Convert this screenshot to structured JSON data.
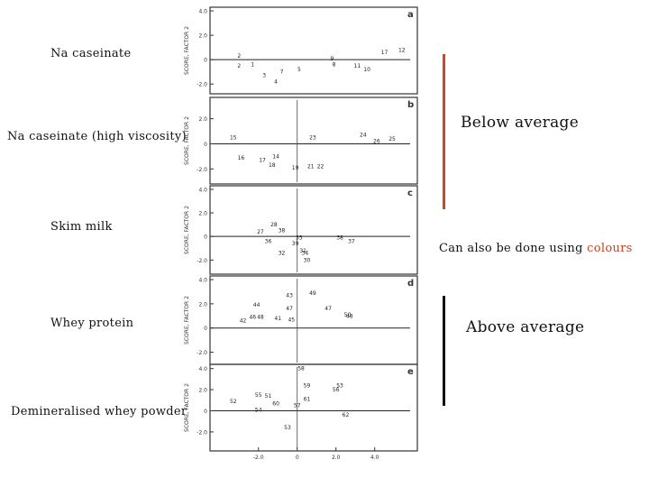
{
  "slide": {
    "plot_labels": [
      "Na caseinate",
      "Na caseinate (high viscosity)",
      "Skim milk",
      "Whey protein",
      "Demineralised whey powder"
    ],
    "below_label": "Below average",
    "above_label": "Above average",
    "colours_note_prefix": "Can also be done using ",
    "colours_note_word": "colours",
    "colors": {
      "below_bar": "#d1451f",
      "above_bar": "#111111",
      "colours_word": "#c5401f"
    }
  },
  "chart_data": [
    {
      "type": "scatter",
      "panel": "a",
      "ylabel": "SCORE, FACTOR 2",
      "yticks": [
        "4.0",
        "2.0",
        "0",
        "-2.0"
      ],
      "ylim": [
        -2.8,
        4.3
      ],
      "xlim": [
        -4.5,
        6.2
      ],
      "vertical_line": false,
      "points": [
        {
          "label": "2",
          "x": -3.0,
          "y": 0.3
        },
        {
          "label": "2",
          "x": -3.0,
          "y": -0.5
        },
        {
          "label": "1",
          "x": -2.3,
          "y": -0.4
        },
        {
          "label": "3",
          "x": -1.7,
          "y": -1.3
        },
        {
          "label": "4",
          "x": -1.1,
          "y": -1.8
        },
        {
          "label": "7",
          "x": -0.8,
          "y": -1.0
        },
        {
          "label": "5",
          "x": 0.1,
          "y": -0.8
        },
        {
          "label": "9",
          "x": 1.8,
          "y": 0.1
        },
        {
          "label": "8",
          "x": 1.9,
          "y": -0.4
        },
        {
          "label": "11",
          "x": 3.1,
          "y": -0.5
        },
        {
          "label": "10",
          "x": 3.6,
          "y": -0.8
        },
        {
          "label": "17",
          "x": 4.5,
          "y": 0.6
        },
        {
          "label": "12",
          "x": 5.4,
          "y": 0.8
        }
      ]
    },
    {
      "type": "scatter",
      "panel": "b",
      "ylabel": "SCORE, FACTOR 2",
      "yticks": [
        "2.0",
        "0",
        "-2.0"
      ],
      "ylim": [
        -3.2,
        3.7
      ],
      "xlim": [
        -4.5,
        6.2
      ],
      "vertical_line": true,
      "points": [
        {
          "label": "15",
          "x": -3.3,
          "y": 0.5
        },
        {
          "label": "16",
          "x": -2.9,
          "y": -1.1
        },
        {
          "label": "17",
          "x": -1.8,
          "y": -1.3
        },
        {
          "label": "18",
          "x": -1.3,
          "y": -1.7
        },
        {
          "label": "14",
          "x": -1.1,
          "y": -1.0
        },
        {
          "label": "19",
          "x": -0.1,
          "y": -1.9
        },
        {
          "label": "21",
          "x": 0.7,
          "y": -1.8
        },
        {
          "label": "22",
          "x": 1.2,
          "y": -1.8
        },
        {
          "label": "23",
          "x": 0.8,
          "y": 0.5
        },
        {
          "label": "24",
          "x": 3.4,
          "y": 0.7
        },
        {
          "label": "26",
          "x": 4.1,
          "y": 0.2
        },
        {
          "label": "25",
          "x": 4.9,
          "y": 0.4
        }
      ]
    },
    {
      "type": "scatter",
      "panel": "c",
      "ylabel": "SCORE, FACTOR 2",
      "yticks": [
        "4.0",
        "2.0",
        "0",
        "-2.0"
      ],
      "ylim": [
        -3.2,
        4.3
      ],
      "xlim": [
        -4.5,
        6.2
      ],
      "vertical_line": true,
      "points": [
        {
          "label": "28",
          "x": -1.2,
          "y": 1.0
        },
        {
          "label": "27",
          "x": -1.9,
          "y": 0.4
        },
        {
          "label": "38",
          "x": -0.8,
          "y": 0.5
        },
        {
          "label": "36",
          "x": -1.5,
          "y": -0.4
        },
        {
          "label": "35",
          "x": 0.1,
          "y": -0.1
        },
        {
          "label": "32",
          "x": -0.8,
          "y": -1.4
        },
        {
          "label": "31",
          "x": 0.3,
          "y": -1.2
        },
        {
          "label": "34",
          "x": 0.4,
          "y": -1.4
        },
        {
          "label": "30",
          "x": 0.5,
          "y": -2.0
        },
        {
          "label": "39",
          "x": -0.1,
          "y": -0.6
        },
        {
          "label": "38",
          "x": 2.2,
          "y": -0.1
        },
        {
          "label": "37",
          "x": 2.8,
          "y": -0.4
        }
      ]
    },
    {
      "type": "scatter",
      "panel": "d",
      "ylabel": "SCORE, FACTOR 2",
      "yticks": [
        "4.0",
        "2.0",
        "0",
        "-2.0"
      ],
      "ylim": [
        -3.0,
        4.3
      ],
      "xlim": [
        -4.5,
        6.2
      ],
      "vertical_line": true,
      "points": [
        {
          "label": "43",
          "x": -0.4,
          "y": 2.7
        },
        {
          "label": "49",
          "x": 0.8,
          "y": 2.9
        },
        {
          "label": "44",
          "x": -2.1,
          "y": 1.9
        },
        {
          "label": "47",
          "x": -0.4,
          "y": 1.6
        },
        {
          "label": "47",
          "x": 1.6,
          "y": 1.6
        },
        {
          "label": "42",
          "x": -2.8,
          "y": 0.6
        },
        {
          "label": "46",
          "x": -2.3,
          "y": 0.9
        },
        {
          "label": "48",
          "x": -1.9,
          "y": 0.9
        },
        {
          "label": "41",
          "x": -1.0,
          "y": 0.8
        },
        {
          "label": "45",
          "x": -0.3,
          "y": 0.7
        },
        {
          "label": "50",
          "x": 2.6,
          "y": 1.1
        },
        {
          "label": "48",
          "x": 2.7,
          "y": 1.0
        }
      ]
    },
    {
      "type": "scatter",
      "panel": "e",
      "ylabel": "SCORE, FACTOR 2",
      "yticks": [
        "4.0",
        "2.0",
        "0",
        "-2.0"
      ],
      "ylim": [
        -3.8,
        4.4
      ],
      "xlim": [
        -4.5,
        6.2
      ],
      "xticks": [
        "-2.0",
        "0",
        "2.0",
        "4.0"
      ],
      "xlabel": "",
      "vertical_line": true,
      "points": [
        {
          "label": "58",
          "x": 0.2,
          "y": 4.0
        },
        {
          "label": "59",
          "x": 0.5,
          "y": 2.4
        },
        {
          "label": "53",
          "x": 2.2,
          "y": 2.4
        },
        {
          "label": "56",
          "x": 2.0,
          "y": 2.0
        },
        {
          "label": "55",
          "x": -2.0,
          "y": 1.5
        },
        {
          "label": "51",
          "x": -1.5,
          "y": 1.4
        },
        {
          "label": "61",
          "x": 0.5,
          "y": 1.1
        },
        {
          "label": "52",
          "x": -3.3,
          "y": 0.9
        },
        {
          "label": "60",
          "x": -1.1,
          "y": 0.7
        },
        {
          "label": "57",
          "x": 0.0,
          "y": 0.5
        },
        {
          "label": "54",
          "x": -2.0,
          "y": 0.1
        },
        {
          "label": "62",
          "x": 2.5,
          "y": -0.4
        },
        {
          "label": "53",
          "x": -0.5,
          "y": -1.6
        }
      ]
    }
  ]
}
